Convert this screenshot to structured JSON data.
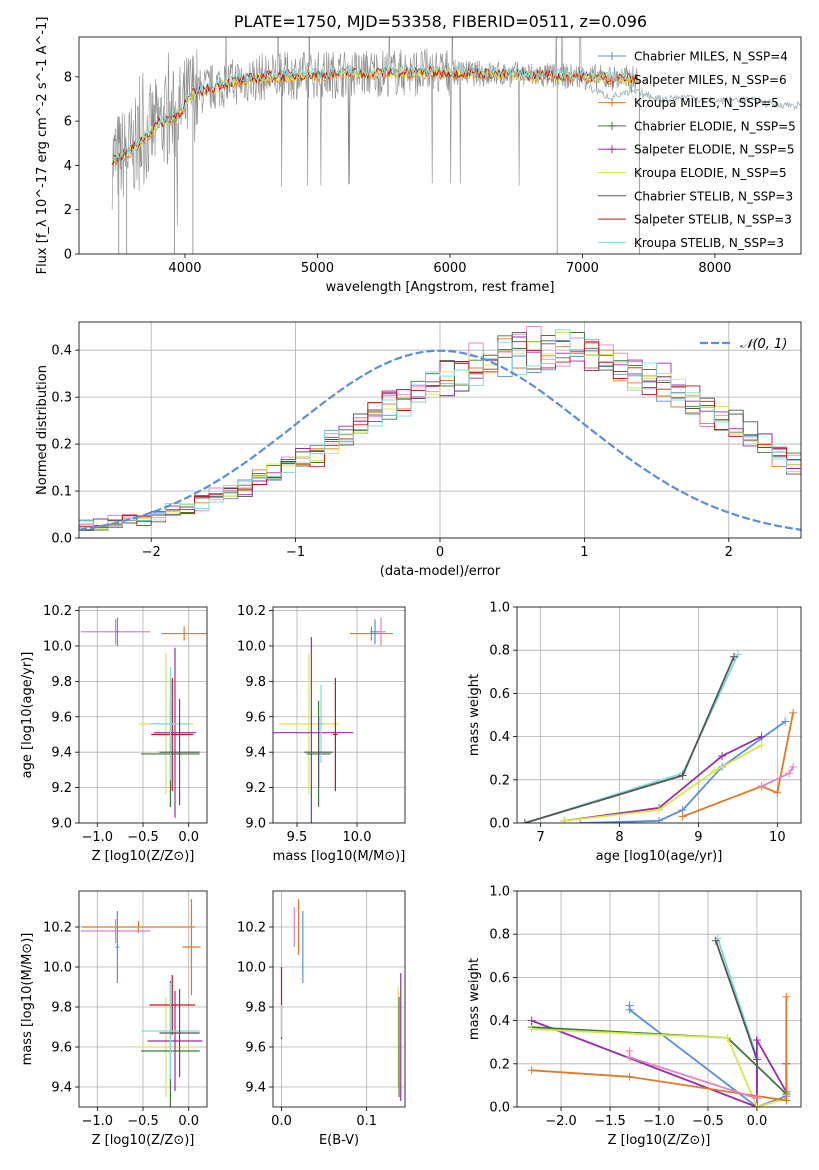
{
  "figure": {
    "title": "PLATE=1750, MJD=53358, FIBERID=0511, z=0.096"
  },
  "colors": {
    "chabrier_miles": "#5b8fd9",
    "salpeter_miles": "#e384c4",
    "kroupa_miles": "#e07a2a",
    "chabrier_elodie": "#3a7d3a",
    "salpeter_elodie": "#9a2fa8",
    "kroupa_elodie": "#d7e84a",
    "chabrier_stelib": "#555555",
    "salpeter_stelib": "#c01818",
    "kroupa_stelib": "#7fd9dd",
    "grid": "#b0b0b0",
    "noise_grey": "#8a8a8a",
    "normal": "#5b8fd9"
  },
  "chart_data": [
    {
      "type": "line",
      "id": "spectrum",
      "xlabel": "wavelength [Angstrom, rest frame]",
      "ylabel": "Flux [f_λ 10^-17 erg cm^-2 s^-1 A^-1]",
      "xlim": [
        3200,
        8650
      ],
      "ylim": [
        0,
        9.8
      ],
      "xticks": [
        4000,
        5000,
        6000,
        7000,
        8000
      ],
      "yticks": [
        0,
        2,
        4,
        6,
        8
      ],
      "grid": false,
      "legend_position": "right",
      "legend": [
        {
          "name": "Chabrier MILES, N_SSP=4",
          "color_key": "chabrier_miles",
          "marker": "+"
        },
        {
          "name": "Salpeter MILES, N_SSP=6",
          "color_key": "salpeter_miles",
          "marker": "+"
        },
        {
          "name": "Kroupa MILES, N_SSP=5",
          "color_key": "kroupa_miles",
          "marker": "+"
        },
        {
          "name": "Chabrier ELODIE, N_SSP=5",
          "color_key": "chabrier_elodie",
          "marker": "+"
        },
        {
          "name": "Salpeter ELODIE, N_SSP=5",
          "color_key": "salpeter_elodie",
          "marker": "+"
        },
        {
          "name": "Kroupa ELODIE, N_SSP=5",
          "color_key": "kroupa_elodie",
          "marker": ""
        },
        {
          "name": "Chabrier STELIB, N_SSP=3",
          "color_key": "chabrier_stelib",
          "marker": ""
        },
        {
          "name": "Salpeter STELIB, N_SSP=3",
          "color_key": "salpeter_stelib",
          "marker": ""
        },
        {
          "name": "Kroupa STELIB, N_SSP=3",
          "color_key": "kroupa_stelib",
          "marker": ""
        }
      ],
      "continuum": {
        "x": [
          3450,
          3600,
          3800,
          3950,
          4050,
          4300,
          4600,
          5000,
          5500,
          6000,
          6500,
          7000,
          7400
        ],
        "y": [
          4.2,
          4.7,
          5.9,
          6.3,
          7.2,
          7.7,
          8.0,
          8.1,
          8.2,
          8.2,
          8.1,
          8.0,
          7.9
        ]
      },
      "stelib_extension": {
        "x": [
          7050,
          7200,
          7400,
          7600,
          7800,
          8000,
          8200,
          8400,
          8650
        ],
        "y": [
          7.5,
          7.1,
          7.3,
          7.0,
          7.1,
          6.9,
          7.0,
          6.8,
          6.7
        ]
      }
    },
    {
      "type": "line",
      "id": "residuals",
      "xlabel": "(data-model)/error",
      "ylabel": "Normed distribution",
      "xlim": [
        -2.5,
        2.5
      ],
      "ylim": [
        0,
        0.46
      ],
      "xticks": [
        -2,
        -1,
        0,
        1,
        2
      ],
      "yticks": [
        0.0,
        0.1,
        0.2,
        0.3,
        0.4
      ],
      "grid": true,
      "legend_position": "top-right",
      "legend": [
        {
          "name": "𝒩(0, 1)",
          "color_key": "normal"
        }
      ],
      "bin_width": 0.1,
      "bin_start": -2.5,
      "histogram_base": [
        0.025,
        0.03,
        0.035,
        0.037,
        0.043,
        0.05,
        0.058,
        0.066,
        0.075,
        0.086,
        0.097,
        0.11,
        0.123,
        0.137,
        0.152,
        0.168,
        0.184,
        0.202,
        0.22,
        0.237,
        0.255,
        0.275,
        0.293,
        0.31,
        0.327,
        0.342,
        0.356,
        0.368,
        0.378,
        0.387,
        0.393,
        0.397,
        0.399,
        0.398,
        0.394,
        0.388,
        0.379,
        0.368,
        0.355,
        0.341,
        0.325,
        0.308,
        0.29,
        0.272,
        0.254,
        0.235,
        0.216,
        0.198,
        0.18,
        0.163
      ]
    },
    {
      "type": "scatter",
      "id": "age_vs_Z",
      "xlabel": "Z [log10(Z/Z⊙)]",
      "ylabel": "age  [log10(age/yr)]",
      "xlim": [
        -1.2,
        0.2
      ],
      "ylim": [
        9.0,
        10.22
      ],
      "xticks": [
        -1.0,
        -0.5,
        0.0
      ],
      "yticks": [
        9.0,
        9.2,
        9.4,
        9.6,
        9.8,
        10.0,
        10.2
      ],
      "grid": true,
      "points": [
        {
          "x": -0.8,
          "y": 10.08,
          "xerr": 0.38,
          "yerr": 0.07,
          "color_key": "salpeter_miles"
        },
        {
          "x": -0.78,
          "y": 10.08,
          "xerr": 0.02,
          "yerr": 0.08,
          "color_key": "chabrier_miles"
        },
        {
          "x": -0.05,
          "y": 10.07,
          "xerr": 0.25,
          "yerr": 0.04,
          "color_key": "kroupa_miles"
        },
        {
          "x": -0.25,
          "y": 9.56,
          "xerr": 0.3,
          "yerr": 0.4,
          "color_key": "kroupa_elodie"
        },
        {
          "x": -0.2,
          "y": 9.39,
          "xerr": 0.32,
          "yerr": 0.3,
          "color_key": "chabrier_elodie"
        },
        {
          "x": -0.18,
          "y": 9.5,
          "xerr": 0.23,
          "yerr": 0.32,
          "color_key": "salpeter_stelib"
        },
        {
          "x": -0.15,
          "y": 9.51,
          "xerr": 0.23,
          "yerr": 0.48,
          "color_key": "salpeter_elodie"
        },
        {
          "x": -0.2,
          "y": 9.56,
          "xerr": 0.22,
          "yerr": 0.32,
          "color_key": "kroupa_stelib"
        },
        {
          "x": -0.1,
          "y": 9.4,
          "xerr": 0.22,
          "yerr": 0.3,
          "color_key": "chabrier_stelib"
        }
      ]
    },
    {
      "type": "scatter",
      "id": "age_vs_mass",
      "xlabel": "mass [log10(M/M⊙)]",
      "ylabel": "",
      "xlim": [
        9.3,
        10.4
      ],
      "ylim": [
        9.0,
        10.22
      ],
      "xticks": [
        9.5,
        10.0
      ],
      "yticks": [
        9.0,
        9.2,
        9.4,
        9.6,
        9.8,
        10.0,
        10.2
      ],
      "grid": true,
      "points": [
        {
          "x": 10.12,
          "y": 10.07,
          "xerr": 0.18,
          "yerr": 0.04,
          "color_key": "kroupa_miles"
        },
        {
          "x": 10.15,
          "y": 10.08,
          "xerr": 0.04,
          "yerr": 0.07,
          "color_key": "chabrier_miles"
        },
        {
          "x": 10.2,
          "y": 10.08,
          "xerr": 0.04,
          "yerr": 0.08,
          "color_key": "salpeter_miles"
        },
        {
          "x": 9.6,
          "y": 9.56,
          "xerr": 0.25,
          "yerr": 0.4,
          "color_key": "kroupa_elodie"
        },
        {
          "x": 9.62,
          "y": 9.51,
          "xerr": 0.35,
          "yerr": 0.54,
          "color_key": "salpeter_elodie"
        },
        {
          "x": 9.68,
          "y": 9.39,
          "xerr": 0.1,
          "yerr": 0.3,
          "color_key": "chabrier_elodie"
        },
        {
          "x": 9.7,
          "y": 9.56,
          "xerr": 0.02,
          "yerr": 0.22,
          "color_key": "kroupa_stelib"
        },
        {
          "x": 9.82,
          "y": 9.5,
          "xerr": 0.02,
          "yerr": 0.32,
          "color_key": "salpeter_stelib"
        },
        {
          "x": 9.68,
          "y": 9.4,
          "xerr": 0.12,
          "yerr": 0.2,
          "color_key": "chabrier_stelib"
        }
      ]
    },
    {
      "type": "line",
      "id": "weight_vs_age",
      "xlabel": "age  [log10(age/yr)]",
      "ylabel": "mass weight",
      "xlim": [
        6.7,
        10.3
      ],
      "ylim": [
        0.0,
        1.0
      ],
      "xticks": [
        7,
        8,
        9,
        10
      ],
      "yticks": [
        0.0,
        0.2,
        0.4,
        0.6,
        0.8,
        1.0
      ],
      "grid": true,
      "series": [
        {
          "color_key": "kroupa_stelib",
          "x": [
            6.8,
            8.8,
            9.5
          ],
          "y": [
            0.0,
            0.23,
            0.78
          ]
        },
        {
          "color_key": "chabrier_stelib",
          "x": [
            6.8,
            8.8,
            9.45
          ],
          "y": [
            0.0,
            0.22,
            0.77
          ]
        },
        {
          "color_key": "chabrier_miles",
          "x": [
            7.5,
            8.5,
            8.8,
            9.3,
            10.1
          ],
          "y": [
            0.0,
            0.01,
            0.06,
            0.26,
            0.47
          ]
        },
        {
          "color_key": "salpeter_elodie",
          "x": [
            7.3,
            8.5,
            9.3,
            9.8
          ],
          "y": [
            0.01,
            0.07,
            0.31,
            0.4
          ]
        },
        {
          "color_key": "kroupa_elodie",
          "x": [
            7.3,
            8.5,
            9.2,
            9.8
          ],
          "y": [
            0.01,
            0.06,
            0.24,
            0.36
          ]
        },
        {
          "color_key": "kroupa_miles",
          "x": [
            8.8,
            9.8,
            10.0,
            10.2
          ],
          "y": [
            0.03,
            0.17,
            0.14,
            0.51
          ]
        },
        {
          "color_key": "salpeter_miles",
          "x": [
            9.8,
            10.15,
            10.2
          ],
          "y": [
            0.17,
            0.23,
            0.26
          ]
        }
      ]
    },
    {
      "type": "scatter",
      "id": "mass_vs_Z",
      "xlabel": "Z [log10(Z/Z⊙)]",
      "ylabel": "mass [log10(M/M⊙)]",
      "xlim": [
        -1.2,
        0.2
      ],
      "ylim": [
        9.3,
        10.38
      ],
      "xticks": [
        -1.0,
        -0.5,
        0.0
      ],
      "yticks": [
        9.4,
        9.6,
        9.8,
        10.0,
        10.2
      ],
      "grid": true,
      "points": [
        {
          "x": -0.55,
          "y": 10.2,
          "xerr": 0.62,
          "yerr": 0.03,
          "color_key": "kroupa_miles"
        },
        {
          "x": -0.8,
          "y": 10.18,
          "xerr": 0.38,
          "yerr": 0.06,
          "color_key": "salpeter_miles"
        },
        {
          "x": -0.78,
          "y": 10.1,
          "xerr": 0.02,
          "yerr": 0.18,
          "color_key": "chabrier_miles"
        },
        {
          "x": 0.03,
          "y": 10.1,
          "xerr": 0.1,
          "yerr": 0.24,
          "color_key": "kroupa_miles"
        },
        {
          "x": -0.25,
          "y": 9.6,
          "xerr": 0.3,
          "yerr": 0.25,
          "color_key": "kroupa_elodie"
        },
        {
          "x": -0.2,
          "y": 9.58,
          "xerr": 0.32,
          "yerr": 0.35,
          "color_key": "chabrier_elodie"
        },
        {
          "x": -0.18,
          "y": 9.81,
          "xerr": 0.25,
          "yerr": 0.15,
          "color_key": "salpeter_stelib"
        },
        {
          "x": -0.15,
          "y": 9.63,
          "xerr": 0.3,
          "yerr": 0.25,
          "color_key": "salpeter_elodie"
        },
        {
          "x": -0.2,
          "y": 9.68,
          "xerr": 0.32,
          "yerr": 0.24,
          "color_key": "kroupa_stelib"
        },
        {
          "x": -0.1,
          "y": 9.67,
          "xerr": 0.22,
          "yerr": 0.22,
          "color_key": "chabrier_stelib"
        }
      ]
    },
    {
      "type": "scatter",
      "id": "mass_vs_ebv",
      "xlabel": "E(B-V)",
      "ylabel": "",
      "xlim": [
        -0.01,
        0.145
      ],
      "ylim": [
        9.3,
        10.38
      ],
      "xticks": [
        0.0,
        0.1
      ],
      "yticks": [
        9.4,
        9.6,
        9.8,
        10.0,
        10.2
      ],
      "grid": true,
      "points": [
        {
          "x": 0.0,
          "y": 9.82,
          "xerr": 0.0,
          "yerr": 0.18,
          "color_key": "salpeter_stelib"
        },
        {
          "x": 0.0,
          "y": 9.73,
          "xerr": 0.0,
          "yerr": 0.08,
          "color_key": "kroupa_stelib"
        },
        {
          "x": 0.015,
          "y": 10.2,
          "xerr": 0.0,
          "yerr": 0.1,
          "color_key": "salpeter_miles"
        },
        {
          "x": 0.02,
          "y": 10.2,
          "xerr": 0.0,
          "yerr": 0.14,
          "color_key": "kroupa_miles"
        },
        {
          "x": 0.025,
          "y": 10.1,
          "xerr": 0.0,
          "yerr": 0.18,
          "color_key": "chabrier_miles"
        },
        {
          "x": 0.137,
          "y": 9.65,
          "xerr": 0.0,
          "yerr": 0.25,
          "color_key": "kroupa_elodie"
        },
        {
          "x": 0.138,
          "y": 9.6,
          "xerr": 0.0,
          "yerr": 0.25,
          "color_key": "chabrier_elodie"
        },
        {
          "x": 0.14,
          "y": 9.65,
          "xerr": 0.0,
          "yerr": 0.32,
          "color_key": "salpeter_elodie"
        }
      ]
    },
    {
      "type": "line",
      "id": "weight_vs_Z",
      "xlabel": "Z [log10(Z/Z⊙)]",
      "ylabel": "mass weight",
      "xlim": [
        -2.45,
        0.45
      ],
      "ylim": [
        0.0,
        1.0
      ],
      "xticks": [
        -2.0,
        -1.5,
        -1.0,
        -0.5,
        0.0
      ],
      "yticks": [
        0.0,
        0.2,
        0.4,
        0.6,
        0.8,
        1.0
      ],
      "grid": true,
      "series": [
        {
          "color_key": "kroupa_stelib",
          "x": [
            -0.4,
            0.0,
            0.0
          ],
          "y": [
            0.78,
            0.23,
            0.0
          ]
        },
        {
          "color_key": "chabrier_stelib",
          "x": [
            -0.42,
            0.0,
            0.0
          ],
          "y": [
            0.77,
            0.22,
            0.0
          ]
        },
        {
          "color_key": "chabrier_miles",
          "x": [
            -1.3,
            -1.3,
            0.0,
            0.3
          ],
          "y": [
            0.47,
            0.45,
            0.0,
            0.05
          ]
        },
        {
          "color_key": "salpeter_elodie",
          "x": [
            -2.3,
            0.0,
            0.0,
            0.3,
            0.3
          ],
          "y": [
            0.4,
            0.0,
            0.31,
            0.07,
            0.2
          ]
        },
        {
          "color_key": "chabrier_elodie",
          "x": [
            -2.3,
            -0.3,
            0.3
          ],
          "y": [
            0.37,
            0.32,
            0.06
          ]
        },
        {
          "color_key": "kroupa_elodie",
          "x": [
            -2.3,
            -0.3,
            0.0,
            0.3
          ],
          "y": [
            0.36,
            0.32,
            0.0,
            0.04
          ]
        },
        {
          "color_key": "kroupa_miles",
          "x": [
            -2.3,
            -1.3,
            0.3,
            0.3
          ],
          "y": [
            0.17,
            0.14,
            0.03,
            0.51
          ]
        },
        {
          "color_key": "salpeter_miles",
          "x": [
            -1.3,
            -1.3,
            0.0
          ],
          "y": [
            0.26,
            0.23,
            0.04
          ]
        }
      ]
    }
  ]
}
